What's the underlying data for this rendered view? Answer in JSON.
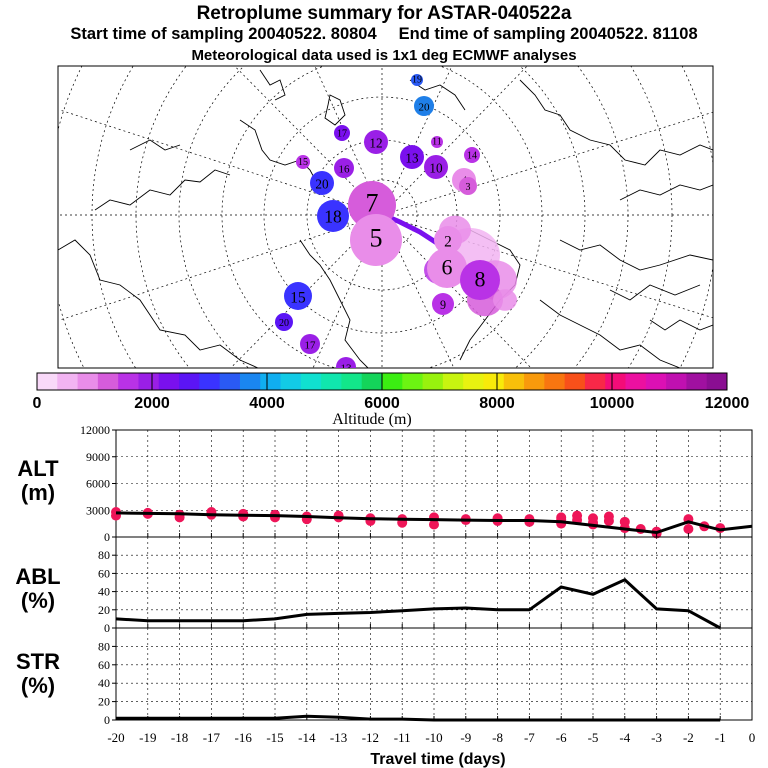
{
  "header": {
    "title": "Retroplume summary for ASTAR-040522a",
    "start_label": "Start time of sampling 20040522. 80804",
    "end_label": "End time of sampling 20040522. 81108",
    "met_label": "Meteorological data used is 1x1 deg ECMWF analyses"
  },
  "colorbar": {
    "label": "Altitude (m)",
    "ticks": [
      "0",
      "2000",
      "4000",
      "6000",
      "8000",
      "10000",
      "12000"
    ],
    "colors": [
      "#f9d9f9",
      "#f2b4f2",
      "#e98de9",
      "#d65cdb",
      "#b932e6",
      "#9a1fe6",
      "#7a10ee",
      "#5b15f5",
      "#3a33ff",
      "#2a5af4",
      "#1a86f0",
      "#10aef0",
      "#12cbe6",
      "#10e0d0",
      "#10e6ae",
      "#12e68a",
      "#14d45a",
      "#3bee12",
      "#6cf412",
      "#98f20e",
      "#c8f410",
      "#e8f210",
      "#f8ea0a",
      "#f8c00a",
      "#f89a0c",
      "#f87610",
      "#f8501a",
      "#f82848",
      "#f40c78",
      "#ec10a0",
      "#dc10b4",
      "#c010b0",
      "#a010a0",
      "#8a0e92"
    ]
  },
  "map": {
    "labels": [
      {
        "t": "20",
        "c": "#1f7fe8"
      },
      {
        "t": "19",
        "c": "#2a5af4"
      },
      {
        "t": "13",
        "c": "#7a10ee"
      },
      {
        "t": "11",
        "c": "#b932e6"
      },
      {
        "t": "10",
        "c": "#9a1fe6"
      },
      {
        "t": "14",
        "c": "#b932e6"
      },
      {
        "t": "12",
        "c": "#9a1fe6"
      },
      {
        "t": "17",
        "c": "#7a10ee"
      },
      {
        "t": "16",
        "c": "#9a1fe6"
      },
      {
        "t": "15",
        "c": "#b932e6"
      },
      {
        "t": "20",
        "c": "#3a33ff"
      },
      {
        "t": "18",
        "c": "#3a33ff"
      },
      {
        "t": "7",
        "c": "#d65cdb"
      },
      {
        "t": "5",
        "c": "#e98de9"
      },
      {
        "t": "4",
        "c": "#e98de9"
      },
      {
        "t": "3",
        "c": "#d65cdb"
      },
      {
        "t": "2",
        "c": "#e98de9"
      },
      {
        "t": "6",
        "c": "#e98de9"
      },
      {
        "t": "8",
        "c": "#b932e6"
      },
      {
        "t": "9",
        "c": "#b932e6"
      },
      {
        "t": "15",
        "c": "#3a33ff"
      },
      {
        "t": "17",
        "c": "#9a1fe6"
      },
      {
        "t": "20",
        "c": "#5b15f5"
      },
      {
        "t": "13",
        "c": "#9a1fe6"
      }
    ]
  },
  "chart_data": [
    {
      "type": "scatter",
      "panel": "ALT",
      "ylabel": "ALT (m)",
      "ylim": [
        0,
        12000
      ],
      "yticks": [
        "0",
        "3000",
        "6000",
        "9000",
        "12000"
      ],
      "x": [
        -20,
        -19,
        -18,
        -17,
        -16,
        -15,
        -14,
        -13,
        -12,
        -11,
        -10,
        -9,
        -8,
        -7,
        -6,
        -5,
        -4,
        -3,
        -2,
        -1,
        0
      ],
      "values": [
        2700,
        2650,
        2600,
        2500,
        2450,
        2400,
        2300,
        2150,
        2050,
        2000,
        1950,
        1900,
        1850,
        1850,
        1700,
        1300,
        900,
        500,
        1700,
        800,
        1200
      ],
      "point_values": [
        2800,
        2400,
        2600,
        2700,
        2500,
        2200,
        2800,
        2500,
        2300,
        2600,
        2200,
        2500,
        2300,
        2000,
        2200,
        2400,
        2100,
        1800,
        2000,
        1600,
        2200,
        1400,
        2000,
        1900,
        2100,
        1800,
        2000,
        2000,
        1900,
        1700,
        2000,
        1500,
        2200,
        1900,
        2400,
        1600,
        2100,
        1400,
        2300,
        1800,
        1700,
        1000,
        900,
        600,
        500,
        400,
        2000,
        900,
        1200,
        1000
      ],
      "point_days": [
        -20,
        -20,
        -19,
        -19,
        -18,
        -18,
        -17,
        -17,
        -16,
        -16,
        -15,
        -15,
        -14,
        -14,
        -13,
        -13,
        -12,
        -12,
        -11,
        -11,
        -10,
        -10,
        -9,
        -9,
        -8,
        -8,
        -8,
        -7,
        -7,
        -7,
        -6,
        -6,
        -6,
        -5.5,
        -5.5,
        -5,
        -5,
        -5,
        -4.5,
        -4.5,
        -4,
        -4,
        -3.5,
        -3,
        -3,
        -3,
        -2,
        -2,
        -1.5,
        -1
      ]
    },
    {
      "type": "line",
      "panel": "ABL",
      "ylabel": "ABL (%)",
      "ylim": [
        0,
        100
      ],
      "yticks": [
        "0",
        "20",
        "40",
        "60",
        "80"
      ],
      "x": [
        -20,
        -19,
        -18,
        -17,
        -16,
        -15,
        -14,
        -13,
        -12,
        -11,
        -10,
        -9,
        -8,
        -7,
        -6,
        -5,
        -4,
        -3,
        -2,
        -1
      ],
      "values": [
        10,
        8,
        8,
        8,
        8,
        10,
        15,
        16,
        17,
        19,
        21,
        22,
        20,
        20,
        45,
        37,
        53,
        21,
        19,
        0
      ]
    },
    {
      "type": "line",
      "panel": "STR",
      "ylabel": "STR (%)",
      "ylim": [
        0,
        100
      ],
      "yticks": [
        "0",
        "20",
        "40",
        "60",
        "80"
      ],
      "x": [
        -20,
        -19,
        -18,
        -17,
        -16,
        -15,
        -14,
        -13,
        -12,
        -11,
        -10,
        -9,
        -8,
        -7,
        -6,
        -5,
        -4,
        -3,
        -2,
        -1
      ],
      "values": [
        2,
        2,
        2,
        2,
        2,
        2,
        4,
        3,
        1,
        1,
        0,
        0,
        0,
        0,
        0,
        0,
        0,
        0,
        0,
        0
      ]
    }
  ],
  "xaxis": {
    "label": "Travel time (days)",
    "ticks": [
      "-20",
      "-19",
      "-18",
      "-17",
      "-16",
      "-15",
      "-14",
      "-13",
      "-12",
      "-11",
      "-10",
      "-9",
      "-8",
      "-7",
      "-6",
      "-5",
      "-4",
      "-3",
      "-2",
      "-1",
      "0"
    ]
  },
  "panels": {
    "alt_label_1": "ALT",
    "alt_label_2": "(m)",
    "abl_label_1": "ABL",
    "abl_label_2": "(%)",
    "str_label_1": "STR",
    "str_label_2": "(%)"
  }
}
